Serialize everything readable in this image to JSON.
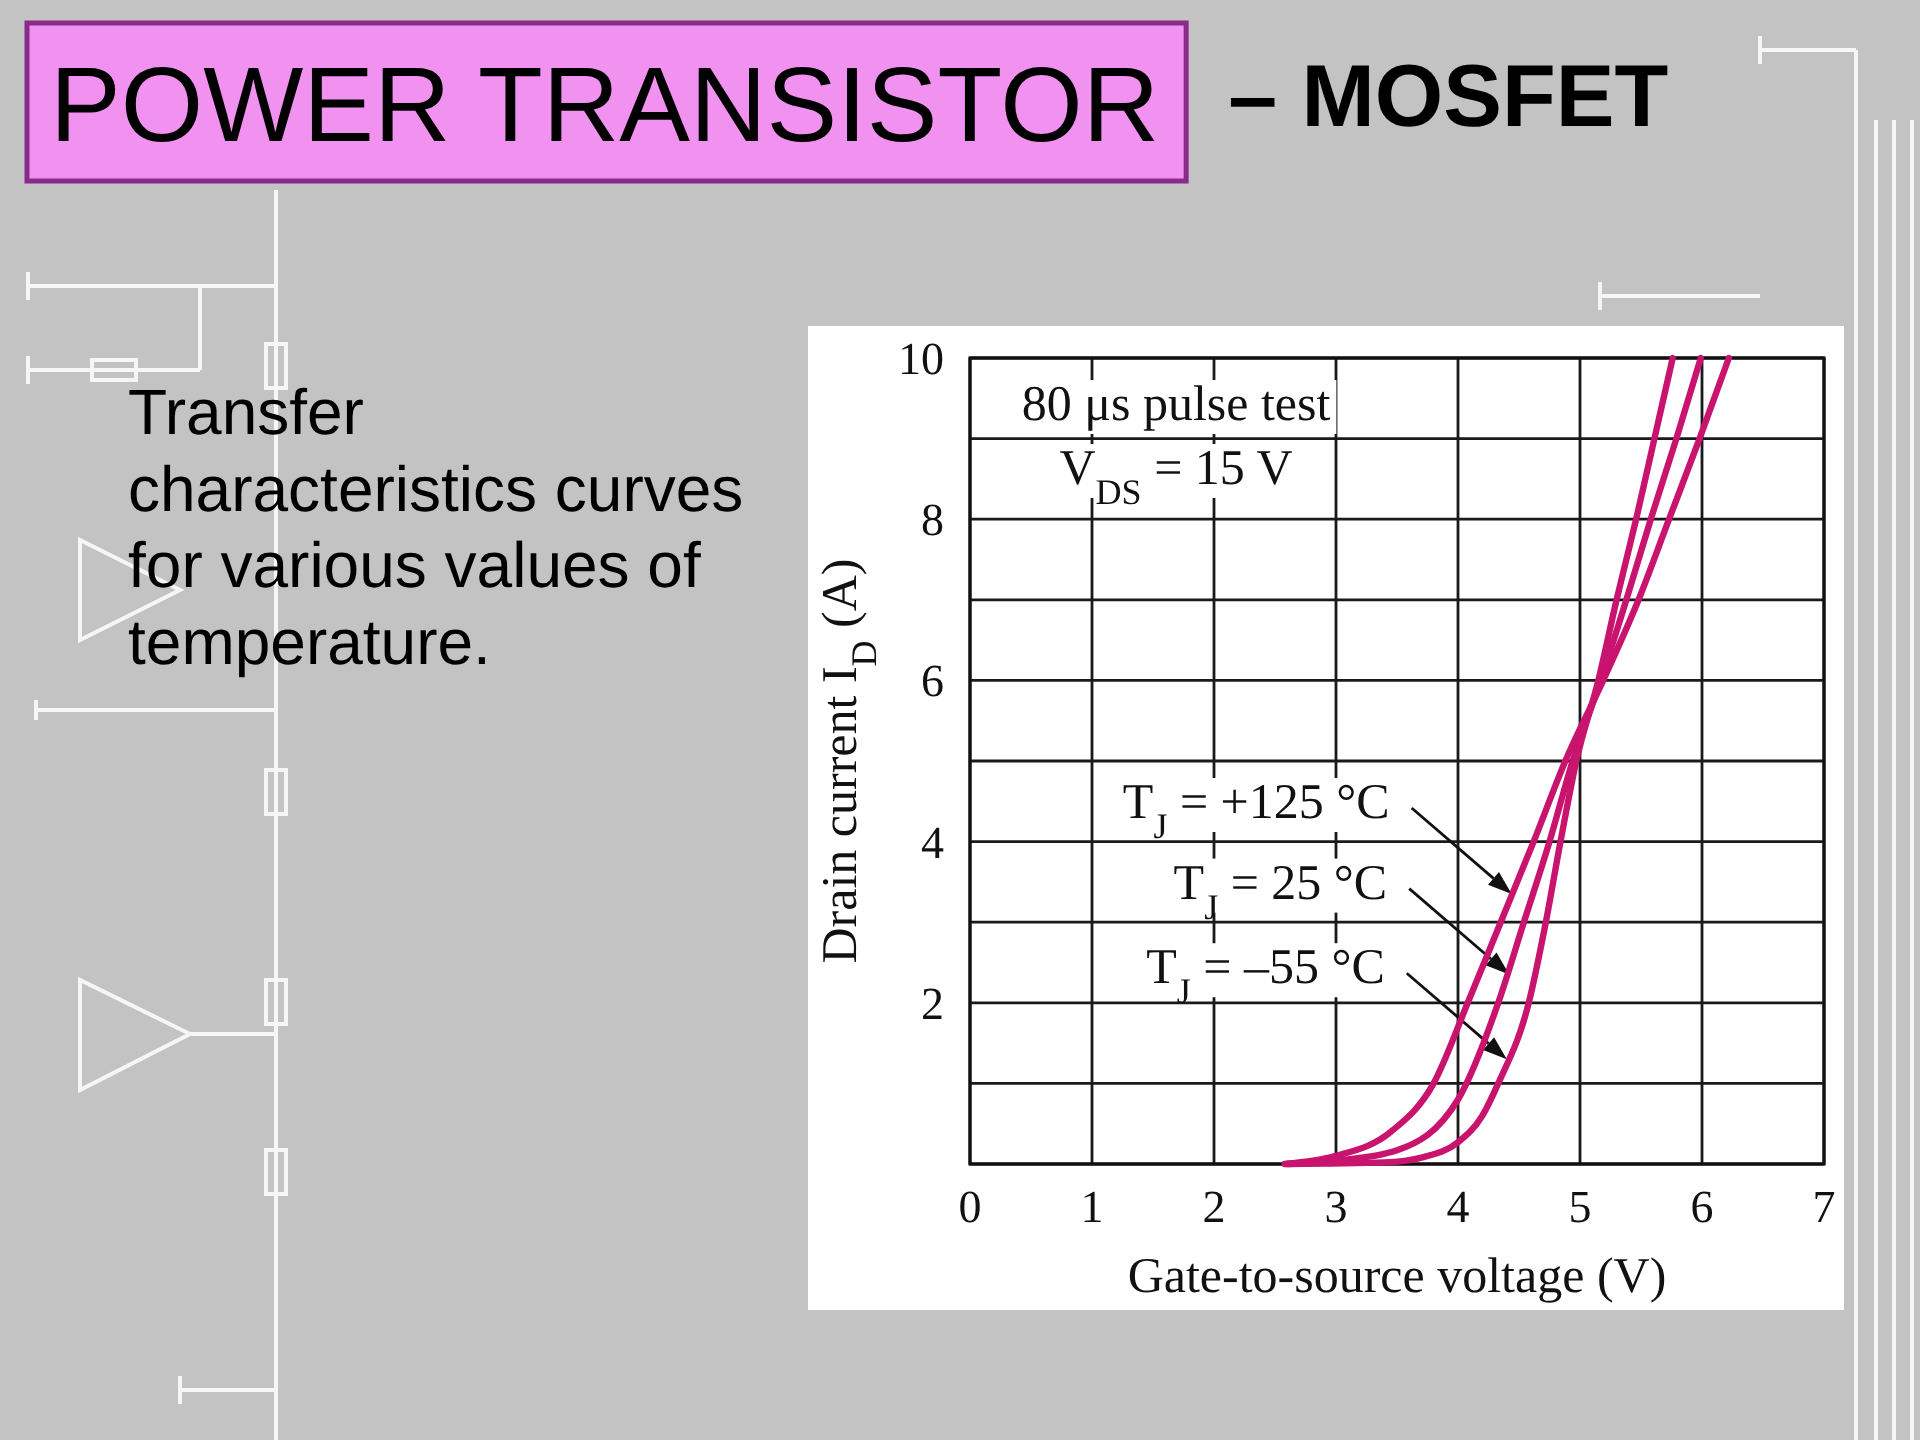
{
  "chart_data": {
    "type": "line",
    "title": "POWER TRANSISTOR",
    "subtitle": "– MOSFET",
    "xlabel": "Gate-to-source voltage (V)",
    "ylabel": "Drain current I$_{D}$ (A)",
    "annotations": [
      "80 μs pulse test",
      "V$_{DS}$ = 15 V",
      "Transfer characteristics curves for various values of temperature.",
      {
        "text": "T$_{J}$ = +125 °C",
        "x": 4.44,
        "y": 3.35
      },
      {
        "text": "T$_{J}$ = 25 °C",
        "x": 4.42,
        "y": 2.35
      },
      {
        "text": "T$_{J}$ = –55 °C",
        "x": 4.4,
        "y": 1.3
      }
    ],
    "xlim": [
      0,
      7
    ],
    "xticks": [
      0,
      1,
      2,
      3,
      4,
      5,
      6,
      7
    ],
    "ylim": [
      0,
      10
    ],
    "yticks": [
      {
        "value": 0,
        "label": null
      },
      {
        "value": 1,
        "label": null
      },
      2,
      {
        "value": 3,
        "label": null
      },
      4,
      {
        "value": 5,
        "label": null
      },
      6,
      {
        "value": 7,
        "label": null
      },
      8,
      {
        "value": 9,
        "label": null
      },
      10
    ],
    "grid": true,
    "series": [
      {
        "color": "#c8146e",
        "x": [
          2.58,
          3.0,
          3.45,
          3.8,
          4.08,
          4.35,
          4.62,
          4.88,
          5.19,
          5.48,
          5.73,
          5.98,
          6.22
        ],
        "values": [
          0,
          0.1,
          0.4,
          1,
          2,
          3,
          4,
          5,
          6,
          7,
          8,
          9,
          10
        ]
      },
      {
        "color": "#c8146e",
        "x": [
          2.6,
          3.0,
          3.5,
          4.0,
          4.33,
          4.54,
          4.75,
          4.94,
          5.17,
          5.38,
          5.58,
          5.79,
          5.99
        ],
        "values": [
          0,
          0.04,
          0.17,
          0.8,
          2,
          3,
          4,
          5,
          6,
          7,
          8,
          9,
          10
        ]
      },
      {
        "color": "#c8146e",
        "x": [
          2.6,
          3.4,
          3.7,
          4.0,
          4.2,
          4.33,
          4.58,
          4.72,
          4.84,
          4.97,
          5.15,
          5.3,
          5.46,
          5.61,
          5.76
        ],
        "values": [
          0,
          0.02,
          0.08,
          0.27,
          0.6,
          1,
          2,
          3,
          4,
          5,
          6,
          7,
          8,
          9,
          10
        ]
      }
    ]
  }
}
